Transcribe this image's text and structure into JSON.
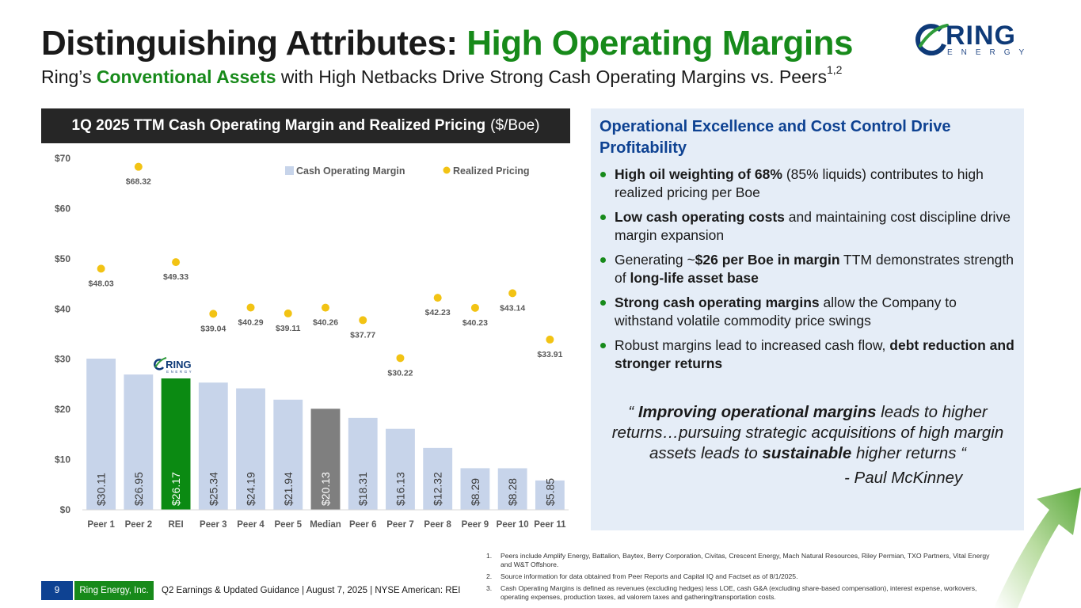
{
  "title": {
    "main": "Distinguishing Attributes: ",
    "accent": "High Operating Margins"
  },
  "subtitle": {
    "pre": "Ring’s ",
    "accent": "Conventional Assets",
    "post": " with High Netbacks Drive Strong Cash Operating Margins vs. Peers",
    "sup": "1,2"
  },
  "logo": {
    "name": "RING",
    "sub": "ENERGY"
  },
  "chart_header": {
    "bold": "1Q 2025 TTM Cash Operating Margin and Realized Pricing",
    "unit": "($/Boe)"
  },
  "chart_data": {
    "type": "bar",
    "title": "1Q 2025 TTM Cash Operating Margin and Realized Pricing ($/Boe)",
    "categories": [
      "Peer 1",
      "Peer 2",
      "REI",
      "Peer 3",
      "Peer 4",
      "Peer 5",
      "Median",
      "Peer 6",
      "Peer 7",
      "Peer 8",
      "Peer 9",
      "Peer 10",
      "Peer 11"
    ],
    "series": [
      {
        "name": "Cash Operating Margin",
        "type": "bar",
        "values": [
          30.11,
          26.95,
          26.17,
          25.34,
          24.19,
          21.94,
          20.13,
          18.31,
          16.13,
          12.32,
          8.29,
          8.28,
          5.85
        ],
        "labels": [
          "$30.11",
          "$26.95",
          "$26.17",
          "$25.34",
          "$24.19",
          "$21.94",
          "$20.13",
          "$18.31",
          "$16.13",
          "$12.32",
          "$8.29",
          "$8.28",
          "$5.85"
        ]
      },
      {
        "name": "Realized Pricing",
        "type": "scatter",
        "values": [
          48.03,
          68.32,
          49.33,
          39.04,
          40.29,
          39.11,
          40.26,
          37.77,
          30.22,
          42.23,
          40.23,
          43.14,
          33.91
        ],
        "labels": [
          "$48.03",
          "$68.32",
          "$49.33",
          "$39.04",
          "$40.29",
          "$39.11",
          "$40.26",
          "$37.77",
          "$30.22",
          "$42.23",
          "$40.23",
          "$43.14",
          "$33.91"
        ]
      }
    ],
    "yticks": [
      "$0",
      "$10",
      "$20",
      "$30",
      "$40",
      "$50",
      "$60",
      "$70"
    ],
    "ylim": [
      0,
      70
    ],
    "legend": "top-right",
    "grid": false,
    "colors": {
      "bar": "#c7d4ea",
      "highlight": "#0b8a12",
      "median": "#7f7f7f",
      "dot": "#f2c314",
      "text": "#595959"
    },
    "rei_logo": {
      "name": "RING",
      "sub": "ENERGY"
    }
  },
  "panel": {
    "title": "Operational Excellence and Cost Control Drive Profitability",
    "bullets": [
      [
        {
          "b": "High oil weighting of 68%"
        },
        {
          "t": " (85% liquids) contributes to high realized pricing per Boe"
        }
      ],
      [
        {
          "b": "Low cash operating costs"
        },
        {
          "t": " and maintaining cost discipline drive margin expansion"
        }
      ],
      [
        {
          "t": "Generating ~"
        },
        {
          "b": "$26 per Boe in margin"
        },
        {
          "t": " TTM demonstrates strength of "
        },
        {
          "b": "long-life asset base"
        }
      ],
      [
        {
          "b": "Strong cash operating margins"
        },
        {
          "t": " allow the Company to withstand volatile commodity price swings"
        }
      ],
      [
        {
          "t": "Robust margins lead to increased cash flow, "
        },
        {
          "b": "debt reduction and stronger returns"
        }
      ]
    ],
    "quote": [
      {
        "t": "“ "
      },
      {
        "b": "Improving operational margins"
      },
      {
        "t": " leads to higher returns…pursuing strategic acquisitions of high margin assets leads to "
      },
      {
        "b": "sustainable"
      },
      {
        "t": " higher returns “"
      }
    ],
    "quote_author": "- Paul McKinney"
  },
  "footnotes": [
    {
      "num": "1.",
      "text": "Peers include Amplify Energy, Battalion, Baytex, Berry Corporation, Civitas, Crescent Energy, Mach Natural Resources, Riley Permian, TXO Partners, Vital Energy and W&T Offshore."
    },
    {
      "num": "2.",
      "text": "Source information for data obtained from Peer Reports and Capital IQ and Factset as of 8/1/2025."
    },
    {
      "num": "3.",
      "text": "Cash Operating Margins is defined as revenues (excluding hedges) less LOE, cash G&A (excluding share-based compensation), interest expense, workovers, operating expenses, production taxes, ad valorem taxes and gathering/transportation costs."
    }
  ],
  "footer": {
    "page": "9",
    "company": "Ring Energy, Inc.",
    "text": "Q2 Earnings & Updated Guidance | August 7, 2025 |  NYSE American: REI"
  }
}
